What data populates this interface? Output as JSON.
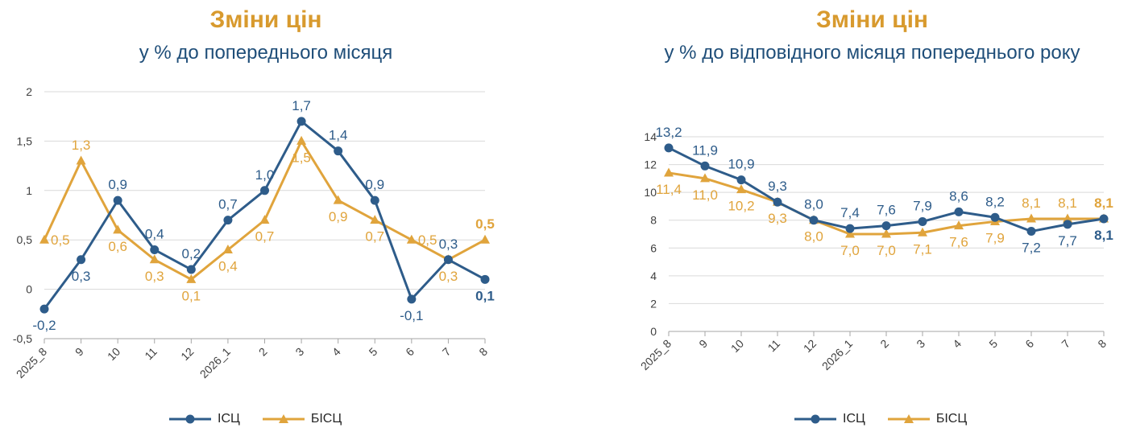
{
  "colors": {
    "isc": "#2E5C8A",
    "bisc": "#E0A43C",
    "grid": "#D9D9D9",
    "axis": "#404040",
    "title": "#D89A2E",
    "subtitle": "#1F4E79"
  },
  "chart_data": [
    {
      "type": "line",
      "title": "Зміни цін",
      "subtitle": "у % до попереднього місяця",
      "categories": [
        "2025_8",
        "9",
        "10",
        "11",
        "12",
        "2026_1",
        "2",
        "3",
        "4",
        "5",
        "6",
        "7",
        "8"
      ],
      "ylim": [
        -0.5,
        2
      ],
      "yticks": [
        "-0,5",
        "0",
        "0,5",
        "1",
        "1,5",
        "2"
      ],
      "ytick_values": [
        -0.5,
        0,
        0.5,
        1,
        1.5,
        2
      ],
      "grid": true,
      "legend_position": "bottom",
      "series": [
        {
          "name": "ІСЦ",
          "marker": "circle",
          "values": [
            -0.2,
            0.3,
            0.9,
            0.4,
            0.2,
            0.7,
            1.0,
            1.7,
            1.4,
            0.9,
            -0.1,
            0.3,
            0.1
          ],
          "labels": [
            "-0,2",
            "0,3",
            "0,9",
            "0,4",
            "0,2",
            "0,7",
            "1,0",
            "1,7",
            "1,4",
            "0,9",
            "-0,1",
            "0,3",
            "0,1"
          ]
        },
        {
          "name": "БІСЦ",
          "marker": "triangle",
          "values": [
            0.5,
            1.3,
            0.6,
            0.3,
            0.1,
            0.4,
            0.7,
            1.5,
            0.9,
            0.7,
            0.5,
            0.3,
            0.5
          ],
          "labels": [
            "0,5",
            "1,3",
            "0,6",
            "0,3",
            "0,1",
            "0,4",
            "0,7",
            "1,5",
            "0,9",
            "0,7",
            "0,5",
            "0,3",
            "0,5"
          ]
        }
      ]
    },
    {
      "type": "line",
      "title": "Зміни цін",
      "subtitle": "у % до відповідного місяця попереднього року",
      "categories": [
        "2025_8",
        "9",
        "10",
        "11",
        "12",
        "2026_1",
        "2",
        "3",
        "4",
        "5",
        "6",
        "7",
        "8"
      ],
      "ylim": [
        0,
        14
      ],
      "yticks": [
        "0",
        "2",
        "4",
        "6",
        "8",
        "10",
        "12",
        "14"
      ],
      "ytick_values": [
        0,
        2,
        4,
        6,
        8,
        10,
        12,
        14
      ],
      "grid": true,
      "legend_position": "bottom",
      "series": [
        {
          "name": "ІСЦ",
          "marker": "circle",
          "values": [
            13.2,
            11.9,
            10.9,
            9.3,
            8.0,
            7.4,
            7.6,
            7.9,
            8.6,
            8.2,
            7.2,
            7.7,
            8.1
          ],
          "labels": [
            "13,2",
            "11,9",
            "10,9",
            "9,3",
            "8,0",
            "7,4",
            "7,6",
            "7,9",
            "8,6",
            "8,2",
            "7,2",
            "7,7",
            "8,1"
          ]
        },
        {
          "name": "БІСЦ",
          "marker": "triangle",
          "values": [
            11.4,
            11.0,
            10.2,
            9.3,
            8.0,
            7.0,
            7.0,
            7.1,
            7.6,
            7.9,
            8.1,
            8.1,
            8.1
          ],
          "labels": [
            "11,4",
            "11,0",
            "10,2",
            "9,3",
            "8,0",
            "7,0",
            "7,0",
            "7,1",
            "7,6",
            "7,9",
            "8,1",
            "8,1",
            "8,1"
          ]
        }
      ]
    }
  ]
}
